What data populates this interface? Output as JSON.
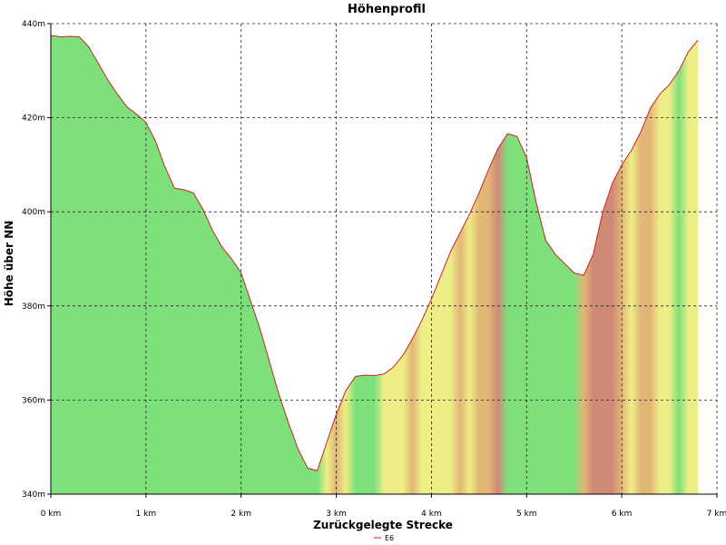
{
  "chart_data": {
    "type": "area",
    "title": "Höhenprofil",
    "xlabel": "Zurückgelegte Strecke",
    "ylabel": "Höhe über NN",
    "xlim": [
      0,
      7
    ],
    "ylim": [
      340,
      440
    ],
    "x_ticks": [
      {
        "value": 0,
        "label": "0 km"
      },
      {
        "value": 1,
        "label": "1 km"
      },
      {
        "value": 2,
        "label": "2 km"
      },
      {
        "value": 3,
        "label": "3 km"
      },
      {
        "value": 4,
        "label": "4 km"
      },
      {
        "value": 5,
        "label": "5 km"
      },
      {
        "value": 6,
        "label": "6 km"
      },
      {
        "value": 7,
        "label": "7 km"
      }
    ],
    "y_ticks": [
      {
        "value": 340,
        "label": "340m"
      },
      {
        "value": 360,
        "label": "360m"
      },
      {
        "value": 380,
        "label": "380m"
      },
      {
        "value": 400,
        "label": "400m"
      },
      {
        "value": 420,
        "label": "420m"
      },
      {
        "value": 440,
        "label": "440m"
      }
    ],
    "grid": true,
    "legend_position": "bottom-center",
    "series": [
      {
        "name": "E6",
        "line_color": "#cc2222",
        "x": [
          0,
          0.1,
          0.2,
          0.3,
          0.4,
          0.5,
          0.6,
          0.7,
          0.8,
          0.9,
          1.0,
          1.1,
          1.2,
          1.3,
          1.4,
          1.5,
          1.6,
          1.7,
          1.8,
          1.9,
          2.0,
          2.1,
          2.2,
          2.3,
          2.4,
          2.5,
          2.6,
          2.7,
          2.8,
          2.9,
          3.0,
          3.1,
          3.2,
          3.3,
          3.4,
          3.5,
          3.6,
          3.7,
          3.8,
          3.9,
          4.0,
          4.1,
          4.2,
          4.3,
          4.4,
          4.5,
          4.6,
          4.7,
          4.8,
          4.9,
          5.0,
          5.1,
          5.2,
          5.3,
          5.4,
          5.5,
          5.6,
          5.7,
          5.8,
          5.9,
          6.0,
          6.1,
          6.2,
          6.3,
          6.4,
          6.5,
          6.6,
          6.7,
          6.8
        ],
        "y": [
          437.5,
          437.2,
          437.3,
          437.2,
          435,
          431.5,
          428,
          425,
          422.3,
          420.8,
          419,
          415,
          409.5,
          405,
          404.7,
          404,
          400.5,
          396,
          392.5,
          390,
          387,
          381,
          375,
          368,
          361,
          355,
          349.5,
          345.5,
          345,
          351,
          357,
          362,
          365,
          365.3,
          365.2,
          365.5,
          367,
          369.5,
          373,
          377,
          381.5,
          386.5,
          391.5,
          395.5,
          399.5,
          404,
          409,
          413.5,
          416.6,
          416,
          411.5,
          402,
          394,
          391,
          389,
          387,
          386.5,
          391,
          400,
          406,
          410,
          413,
          417,
          422,
          425,
          427,
          430,
          434,
          436.5
        ],
        "gradient_class": [
          "green",
          "green",
          "green",
          "green",
          "green",
          "green",
          "green",
          "green",
          "green",
          "green",
          "green",
          "green",
          "green",
          "green",
          "green",
          "green",
          "green",
          "green",
          "green",
          "green",
          "green",
          "green",
          "green",
          "green",
          "green",
          "green",
          "green",
          "green",
          "green",
          "yellow",
          "orange",
          "yellow",
          "green",
          "green",
          "green",
          "yellow",
          "yellow",
          "yellow",
          "orange",
          "yellow",
          "yellow",
          "yellow",
          "yellow",
          "orange",
          "yellow",
          "orange",
          "orange",
          "red",
          "green",
          "green",
          "green",
          "green",
          "green",
          "green",
          "green",
          "green",
          "orange",
          "red",
          "red",
          "red",
          "orange",
          "yellow",
          "orange",
          "orange",
          "yellow",
          "yellow",
          "green",
          "yellow",
          "yellow"
        ]
      }
    ]
  }
}
